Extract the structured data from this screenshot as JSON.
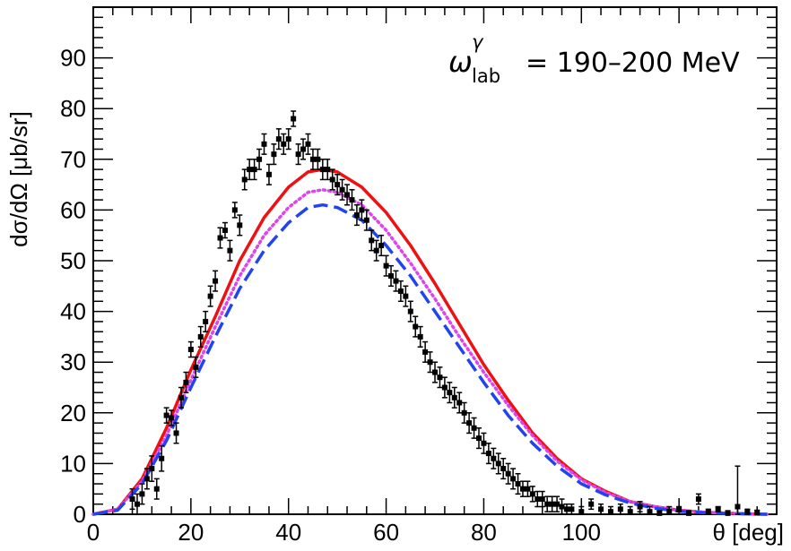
{
  "chart_data": {
    "type": "scatter",
    "title": "",
    "xlabel": "θ [deg]",
    "ylabel": "dσ/dΩ [μb/sr]",
    "xlim": [
      0,
      140
    ],
    "ylim": [
      0,
      100
    ],
    "x_ticks": [
      0,
      20,
      40,
      60,
      80,
      100
    ],
    "x_tick_labels": [
      "0",
      "20",
      "40",
      "60",
      "80",
      "100"
    ],
    "y_ticks": [
      0,
      10,
      20,
      30,
      40,
      50,
      60,
      70,
      80,
      90
    ],
    "y_tick_labels": [
      "0",
      "10",
      "20",
      "30",
      "40",
      "50",
      "60",
      "70",
      "80",
      "90"
    ],
    "grid": false,
    "annotation": {
      "symbol": "ω",
      "superscript": "γ",
      "subscript": "lab",
      "range_text": "= 190–200 MeV"
    },
    "series": [
      {
        "name": "data",
        "style": "points",
        "color": "#000000",
        "points": [
          [
            8,
            3,
            2
          ],
          [
            9,
            2,
            2
          ],
          [
            10,
            4,
            2
          ],
          [
            11,
            7,
            2
          ],
          [
            12,
            9,
            2.5
          ],
          [
            13,
            5,
            2
          ],
          [
            14,
            11,
            2.5
          ],
          [
            15,
            19.5,
            1.5
          ],
          [
            16,
            19,
            1.5
          ],
          [
            17,
            16,
            2
          ],
          [
            18,
            23,
            2
          ],
          [
            19,
            26,
            2
          ],
          [
            20,
            32.5,
            1.5
          ],
          [
            21,
            29,
            2
          ],
          [
            22,
            35,
            2
          ],
          [
            23,
            38,
            2
          ],
          [
            24,
            43,
            2
          ],
          [
            25,
            46,
            2
          ],
          [
            26,
            54.5,
            2
          ],
          [
            27,
            56,
            1.5
          ],
          [
            28,
            52,
            2
          ],
          [
            29,
            60,
            1.5
          ],
          [
            30,
            57,
            2
          ],
          [
            31,
            66,
            2
          ],
          [
            32,
            68,
            2
          ],
          [
            33,
            68,
            2
          ],
          [
            34,
            70,
            2
          ],
          [
            35,
            73,
            2
          ],
          [
            36,
            67,
            2
          ],
          [
            37,
            71,
            2
          ],
          [
            38,
            74,
            2
          ],
          [
            39,
            73,
            2
          ],
          [
            40,
            74,
            2
          ],
          [
            41,
            78,
            1.5
          ],
          [
            42,
            71,
            2
          ],
          [
            43,
            72,
            2
          ],
          [
            44,
            73,
            2
          ],
          [
            45,
            70,
            2
          ],
          [
            46,
            70,
            2
          ],
          [
            47,
            68,
            2
          ],
          [
            48,
            68,
            2
          ],
          [
            49,
            66,
            2
          ],
          [
            50,
            65,
            2
          ],
          [
            51,
            64,
            2
          ],
          [
            52,
            63,
            2
          ],
          [
            53,
            62,
            2
          ],
          [
            54,
            59,
            2
          ],
          [
            55,
            60,
            2
          ],
          [
            56,
            58,
            2
          ],
          [
            57,
            54,
            2
          ],
          [
            58,
            52,
            2
          ],
          [
            59,
            53,
            2
          ],
          [
            60,
            49,
            2
          ],
          [
            61,
            47,
            2
          ],
          [
            62,
            46,
            2
          ],
          [
            63,
            44,
            2
          ],
          [
            64,
            43,
            2
          ],
          [
            65,
            40,
            2
          ],
          [
            66,
            37,
            2
          ],
          [
            67,
            35,
            2
          ],
          [
            68,
            32,
            2
          ],
          [
            69,
            30,
            2
          ],
          [
            70,
            28,
            2
          ],
          [
            71,
            27,
            2
          ],
          [
            72,
            25,
            2
          ],
          [
            73,
            24,
            2
          ],
          [
            74,
            23,
            2
          ],
          [
            75,
            22,
            2
          ],
          [
            76,
            20,
            2
          ],
          [
            77,
            18,
            2
          ],
          [
            78,
            17,
            2
          ],
          [
            79,
            15,
            2
          ],
          [
            80,
            14,
            2
          ],
          [
            81,
            12,
            2
          ],
          [
            82,
            11,
            2
          ],
          [
            83,
            10,
            2
          ],
          [
            84,
            9,
            2
          ],
          [
            85,
            8,
            2
          ],
          [
            86,
            7,
            2
          ],
          [
            87,
            6,
            2
          ],
          [
            88,
            5,
            1.5
          ],
          [
            89,
            5,
            1.5
          ],
          [
            90,
            4,
            1.5
          ],
          [
            91,
            3,
            1.5
          ],
          [
            92,
            3,
            1.5
          ],
          [
            93,
            2,
            1.5
          ],
          [
            94,
            2,
            1.5
          ],
          [
            95,
            2,
            1.5
          ],
          [
            96,
            1.5,
            1.5
          ],
          [
            97,
            1,
            1
          ],
          [
            98,
            1,
            1
          ],
          [
            100,
            0.5,
            1
          ],
          [
            102,
            2,
            1
          ],
          [
            104,
            1,
            1
          ],
          [
            106,
            0.5,
            1
          ],
          [
            108,
            1,
            1
          ],
          [
            110,
            0.5,
            1
          ],
          [
            112,
            1.5,
            1
          ],
          [
            114,
            0.5,
            1
          ],
          [
            116,
            0.2,
            0.5
          ],
          [
            118,
            0.5,
            1
          ],
          [
            120,
            1,
            0.5
          ],
          [
            122,
            0.2,
            0.5
          ],
          [
            124,
            3,
            1
          ],
          [
            126,
            0.5,
            0.5
          ],
          [
            128,
            1,
            0.5
          ],
          [
            130,
            0.2,
            0.5
          ],
          [
            132,
            1.5,
            8
          ],
          [
            134,
            0.5,
            0.5
          ],
          [
            136,
            0.3,
            0.5
          ]
        ]
      },
      {
        "name": "red-solid",
        "style": "solid",
        "color": "#ee1111",
        "x": [
          0,
          5,
          10,
          15,
          20,
          25,
          30,
          35,
          40,
          44,
          47,
          50,
          55,
          60,
          65,
          70,
          75,
          80,
          85,
          90,
          95,
          100,
          105,
          110,
          115,
          120,
          125,
          130,
          135,
          138
        ],
        "y": [
          0,
          1,
          7,
          17,
          28.5,
          39,
          50,
          58.5,
          64.5,
          67.5,
          68,
          67.5,
          64.5,
          59.5,
          53,
          45.5,
          37.5,
          29.5,
          22.5,
          16,
          11,
          7,
          4.5,
          2.5,
          1.5,
          0.8,
          0.4,
          0.2,
          0.05,
          0
        ]
      },
      {
        "name": "magenta-dotted",
        "style": "dotted",
        "color": "#dd44ee",
        "x": [
          0,
          5,
          10,
          15,
          20,
          25,
          30,
          35,
          40,
          44,
          47,
          50,
          55,
          60,
          65,
          70,
          75,
          80,
          85,
          90,
          95,
          100,
          105,
          110,
          115,
          120,
          125,
          130,
          135,
          138
        ],
        "y": [
          0,
          1,
          6.5,
          15.5,
          26.5,
          37,
          47,
          55,
          60.5,
          63.5,
          64,
          63.5,
          61,
          56,
          49.5,
          42.5,
          35,
          28,
          21.5,
          15.5,
          10.5,
          6.8,
          4.3,
          2.5,
          1.5,
          0.8,
          0.4,
          0.2,
          0.05,
          0
        ]
      },
      {
        "name": "blue-dashed",
        "style": "dashed",
        "color": "#2244ee",
        "x": [
          0,
          5,
          10,
          15,
          20,
          25,
          30,
          35,
          40,
          44,
          47,
          50,
          55,
          60,
          65,
          70,
          75,
          80,
          85,
          90,
          95,
          100,
          105,
          110,
          115,
          120,
          125,
          130,
          135,
          138
        ],
        "y": [
          0,
          0.8,
          6,
          14.5,
          25,
          35,
          44.5,
          52,
          57.5,
          60.5,
          61,
          60.5,
          58,
          53,
          47,
          40,
          33,
          26,
          19.5,
          14,
          9.5,
          6,
          3.8,
          2.2,
          1.2,
          0.6,
          0.3,
          0.15,
          0.05,
          0
        ]
      }
    ]
  }
}
